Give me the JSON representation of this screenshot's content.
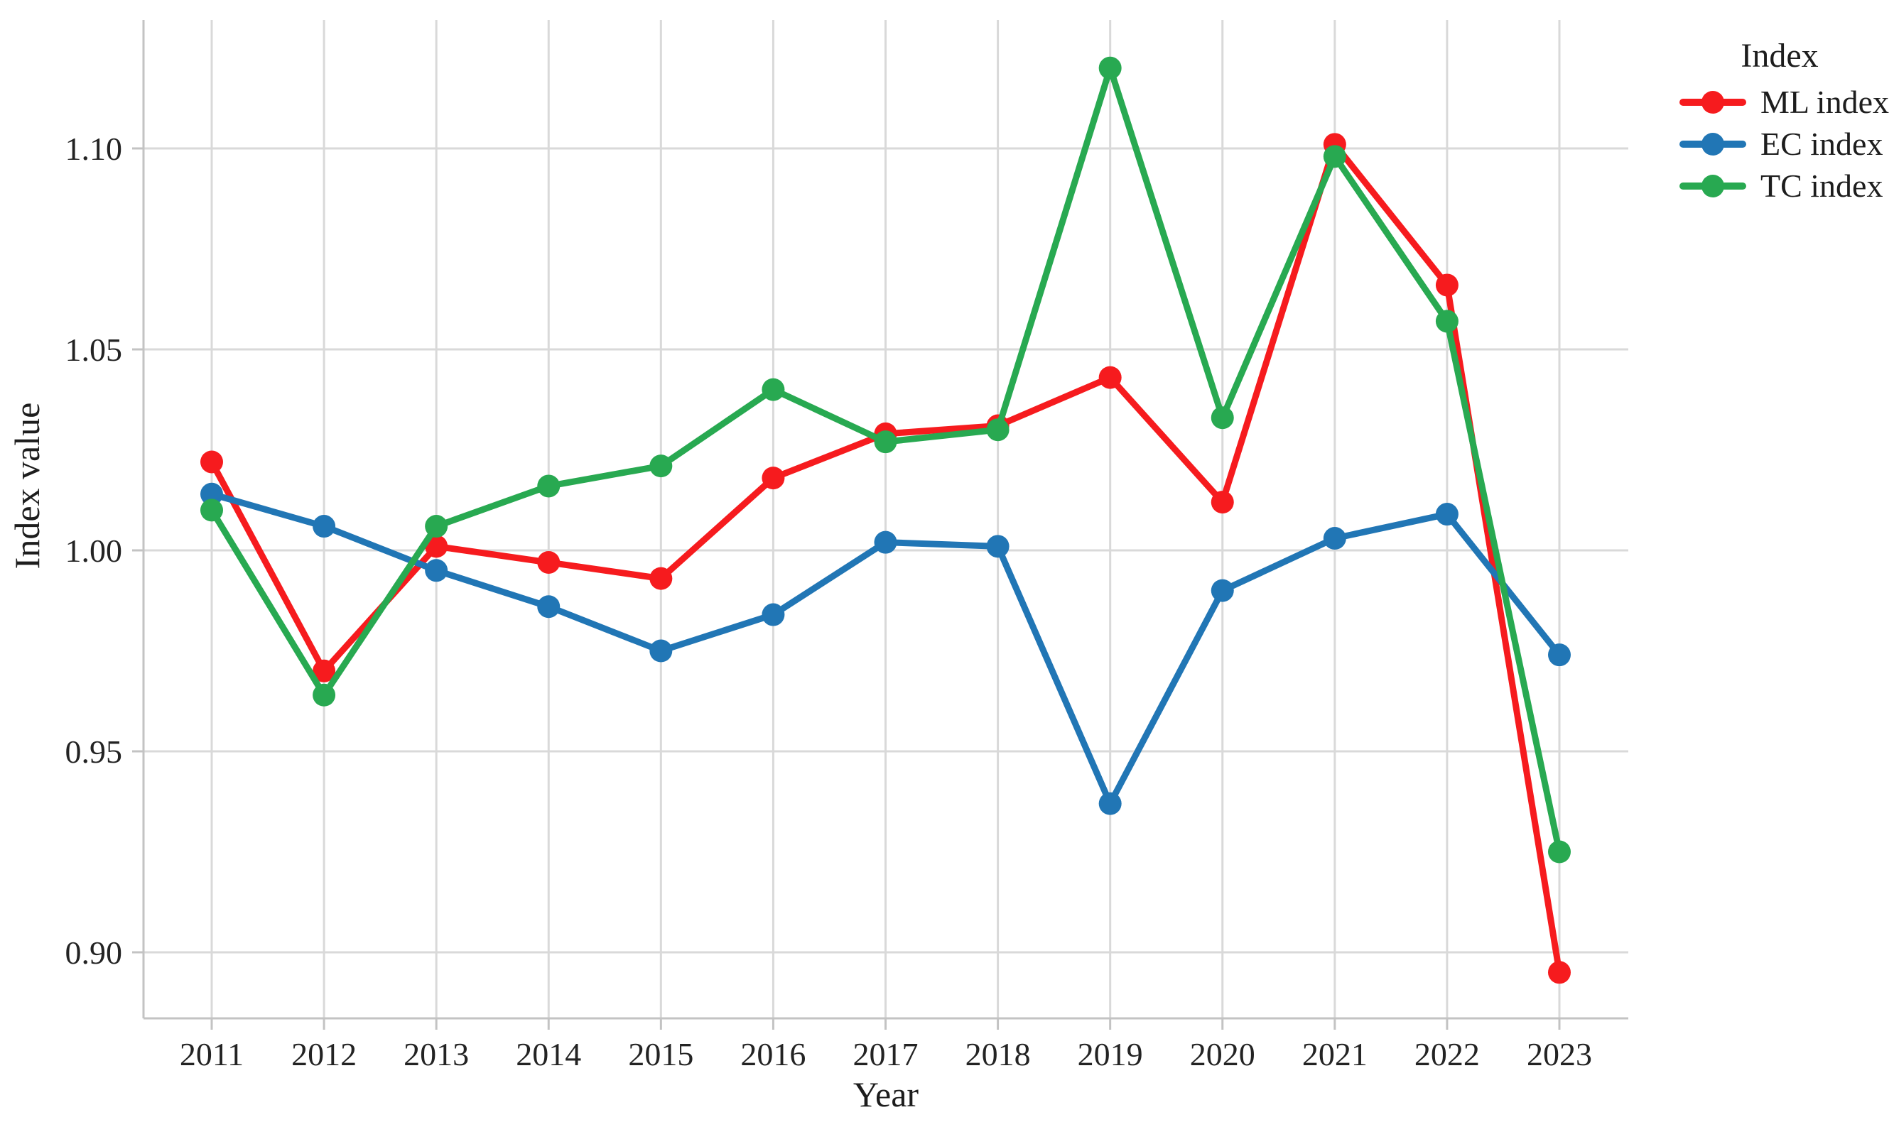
{
  "axes": {
    "x_title": "Year",
    "y_title": "Index value"
  },
  "legend": {
    "title": "Index",
    "items": [
      {
        "label": "ML index"
      },
      {
        "label": "EC index"
      },
      {
        "label": "TC index"
      }
    ]
  },
  "chart_data": {
    "type": "line",
    "title": "",
    "xlabel": "Year",
    "ylabel": "Index value",
    "x_labels": [
      "2011",
      "2012",
      "2013",
      "2014",
      "2015",
      "2016",
      "2017",
      "2018",
      "2019",
      "2020",
      "2021",
      "2022",
      "2023"
    ],
    "y_ticks": [
      0.9,
      0.95,
      1.0,
      1.05,
      1.1
    ],
    "y_tick_labels": [
      "0.90",
      "0.95",
      "1.00",
      "1.05",
      "1.10"
    ],
    "ylim": [
      0.884,
      1.132
    ],
    "grid": true,
    "grid_color": "#d9d9d9",
    "spine_color": "#c3c3c3",
    "legend_position": "right-top",
    "legend_title": "Index",
    "marker": "circle",
    "series": [
      {
        "name": "ML index",
        "color": "#f61b1e",
        "values": [
          1.022,
          0.97,
          1.001,
          0.997,
          0.993,
          1.018,
          1.029,
          1.031,
          1.043,
          1.012,
          1.101,
          1.066,
          0.895
        ]
      },
      {
        "name": "EC index",
        "color": "#2176b5",
        "values": [
          1.014,
          1.006,
          0.995,
          0.986,
          0.975,
          0.984,
          1.002,
          1.001,
          0.937,
          0.99,
          1.003,
          1.009,
          0.974
        ]
      },
      {
        "name": "TC index",
        "color": "#28a951",
        "values": [
          1.01,
          0.964,
          1.006,
          1.016,
          1.021,
          1.04,
          1.027,
          1.03,
          1.12,
          1.033,
          1.098,
          1.057,
          0.925
        ]
      }
    ]
  }
}
